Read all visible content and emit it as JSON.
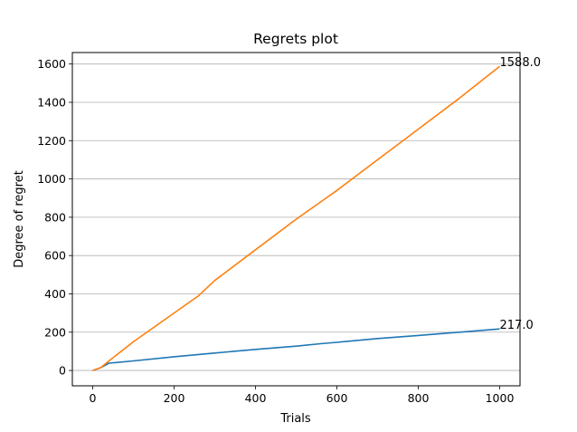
{
  "chart_data": {
    "type": "line",
    "title": "Regrets plot",
    "xlabel": "Trials",
    "ylabel": "Degree of regret",
    "xlim": [
      -50,
      1050
    ],
    "ylim": [
      -80,
      1660
    ],
    "x_ticks": [
      0,
      200,
      400,
      600,
      800,
      1000
    ],
    "y_ticks": [
      0,
      200,
      400,
      600,
      800,
      1000,
      1200,
      1400,
      1600
    ],
    "grid": "horizontal",
    "series": [
      {
        "color": "#1f77b4",
        "x": [
          0,
          20,
          40,
          100,
          200,
          300,
          400,
          500,
          560,
          600,
          700,
          800,
          900,
          1000
        ],
        "y": [
          0,
          15,
          38,
          50,
          72,
          91,
          110,
          127,
          140,
          147,
          167,
          183,
          200,
          217
        ]
      },
      {
        "color": "#ff7f0e",
        "x": [
          0,
          20,
          40,
          100,
          200,
          260,
          300,
          400,
          500,
          560,
          600,
          700,
          800,
          900,
          1000
        ],
        "y": [
          0,
          15,
          50,
          150,
          300,
          390,
          470,
          630,
          790,
          880,
          940,
          1100,
          1260,
          1420,
          1588
        ]
      }
    ],
    "annotations": [
      {
        "text": "1588.0",
        "x": 1000,
        "y": 1588
      },
      {
        "text": "217.0",
        "x": 1000,
        "y": 217
      }
    ]
  }
}
